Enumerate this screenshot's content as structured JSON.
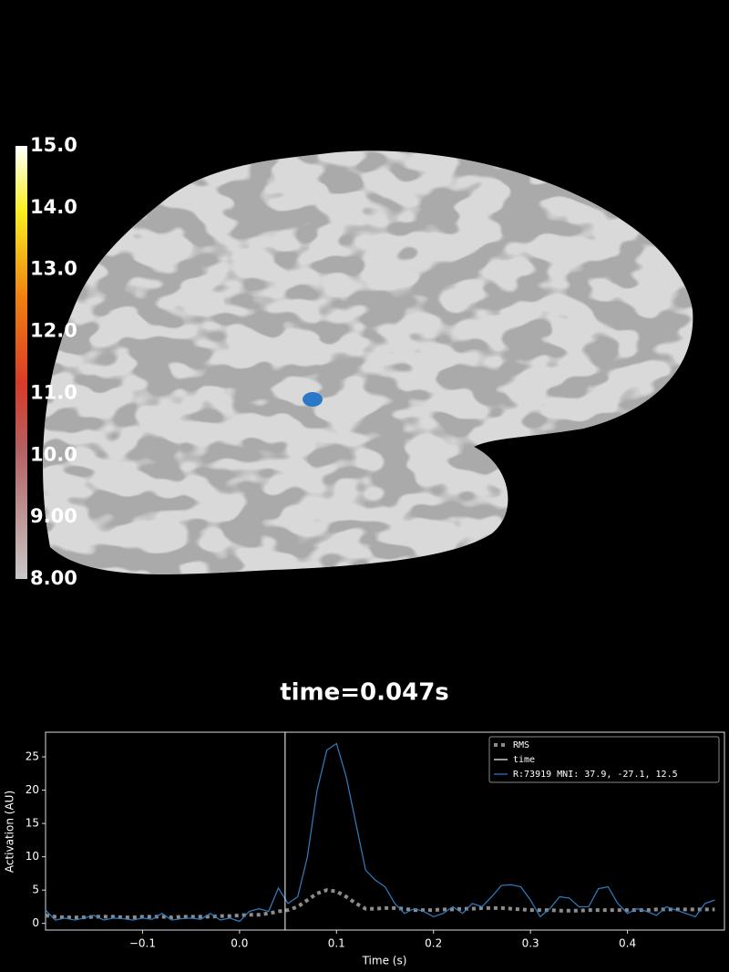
{
  "colorbar": {
    "lim": [
      8,
      15
    ],
    "ticks": [
      {
        "value": 8,
        "label": "8.00"
      },
      {
        "value": 9,
        "label": "9.00"
      },
      {
        "value": 10,
        "label": "10.0"
      },
      {
        "value": 11,
        "label": "11.0"
      },
      {
        "value": 12,
        "label": "12.0"
      },
      {
        "value": 13,
        "label": "13.0"
      },
      {
        "value": 14,
        "label": "14.0"
      },
      {
        "value": 15,
        "label": "15.0"
      }
    ]
  },
  "time_label": "time=0.047s",
  "chart_data": {
    "type": "line",
    "xlabel": "Time (s)",
    "ylabel": "Activation (AU)",
    "x": [
      -0.2,
      -0.19,
      -0.18,
      -0.17,
      -0.16,
      -0.15,
      -0.14,
      -0.13,
      -0.12,
      -0.11,
      -0.1,
      -0.09,
      -0.08,
      -0.07,
      -0.06,
      -0.05,
      -0.04,
      -0.03,
      -0.02,
      -0.01,
      0.0,
      0.01,
      0.02,
      0.03,
      0.04,
      0.05,
      0.06,
      0.07,
      0.08,
      0.09,
      0.1,
      0.11,
      0.12,
      0.13,
      0.14,
      0.15,
      0.16,
      0.17,
      0.18,
      0.19,
      0.2,
      0.21,
      0.22,
      0.23,
      0.24,
      0.25,
      0.26,
      0.27,
      0.28,
      0.29,
      0.3,
      0.31,
      0.32,
      0.33,
      0.34,
      0.35,
      0.36,
      0.37,
      0.38,
      0.39,
      0.4,
      0.41,
      0.42,
      0.43,
      0.44,
      0.45,
      0.46,
      0.47,
      0.48,
      0.49
    ],
    "series": [
      {
        "name": "RMS",
        "color": "#8c8c8c",
        "style": "dotted",
        "values": [
          1.2,
          1.0,
          0.9,
          0.9,
          0.9,
          1.0,
          1.0,
          1.0,
          0.9,
          0.9,
          1.0,
          1.0,
          1.0,
          0.9,
          1.0,
          1.0,
          1.0,
          1.0,
          1.1,
          1.1,
          1.2,
          1.3,
          1.3,
          1.5,
          1.8,
          2.0,
          2.5,
          3.5,
          4.5,
          5.0,
          4.8,
          4.0,
          3.0,
          2.2,
          2.2,
          2.3,
          2.3,
          2.2,
          2.0,
          2.0,
          2.0,
          2.1,
          2.1,
          2.2,
          2.2,
          2.3,
          2.3,
          2.3,
          2.2,
          2.1,
          2.0,
          2.0,
          2.0,
          1.9,
          1.9,
          1.9,
          2.0,
          2.0,
          2.0,
          2.0,
          2.0,
          2.0,
          2.0,
          2.1,
          2.1,
          2.1,
          2.1,
          2.1,
          2.1,
          2.1
        ]
      },
      {
        "name": "R:73919  MNI:  37.9, -27.1,  12.5",
        "color": "#2f7fc4",
        "style": "solid",
        "values": [
          2.0,
          0.5,
          0.8,
          0.5,
          0.8,
          1.2,
          0.5,
          0.8,
          0.7,
          0.5,
          0.8,
          0.6,
          1.5,
          0.5,
          0.7,
          0.8,
          0.6,
          1.5,
          0.5,
          0.8,
          0.3,
          1.8,
          2.2,
          1.8,
          5.3,
          3.0,
          4.0,
          10.0,
          20.0,
          26.0,
          27.0,
          22.0,
          15.0,
          8.0,
          6.5,
          5.5,
          3.0,
          1.5,
          2.2,
          1.8,
          1.0,
          1.5,
          2.5,
          1.5,
          3.0,
          2.5,
          4.0,
          5.7,
          5.8,
          5.5,
          3.5,
          1.0,
          2.2,
          4.0,
          3.8,
          2.5,
          2.5,
          5.2,
          5.5,
          3.0,
          1.5,
          2.2,
          1.8,
          1.2,
          2.5,
          2.0,
          1.5,
          1.0,
          3.0,
          3.5
        ]
      }
    ],
    "vlines": [
      {
        "name": "time",
        "color": "#ffffff",
        "x": 0.047
      }
    ],
    "xlim": [
      -0.2,
      0.5
    ],
    "ylim": [
      -1,
      28.7
    ],
    "xticks": [
      {
        "value": -0.1,
        "label": "−0.1"
      },
      {
        "value": 0,
        "label": "0.0"
      },
      {
        "value": 0.1,
        "label": "0.1"
      },
      {
        "value": 0.2,
        "label": "0.2"
      },
      {
        "value": 0.3,
        "label": "0.3"
      },
      {
        "value": 0.4,
        "label": "0.4"
      }
    ],
    "yticks": [
      0,
      5,
      10,
      15,
      20,
      25
    ],
    "legend": "upper right"
  }
}
